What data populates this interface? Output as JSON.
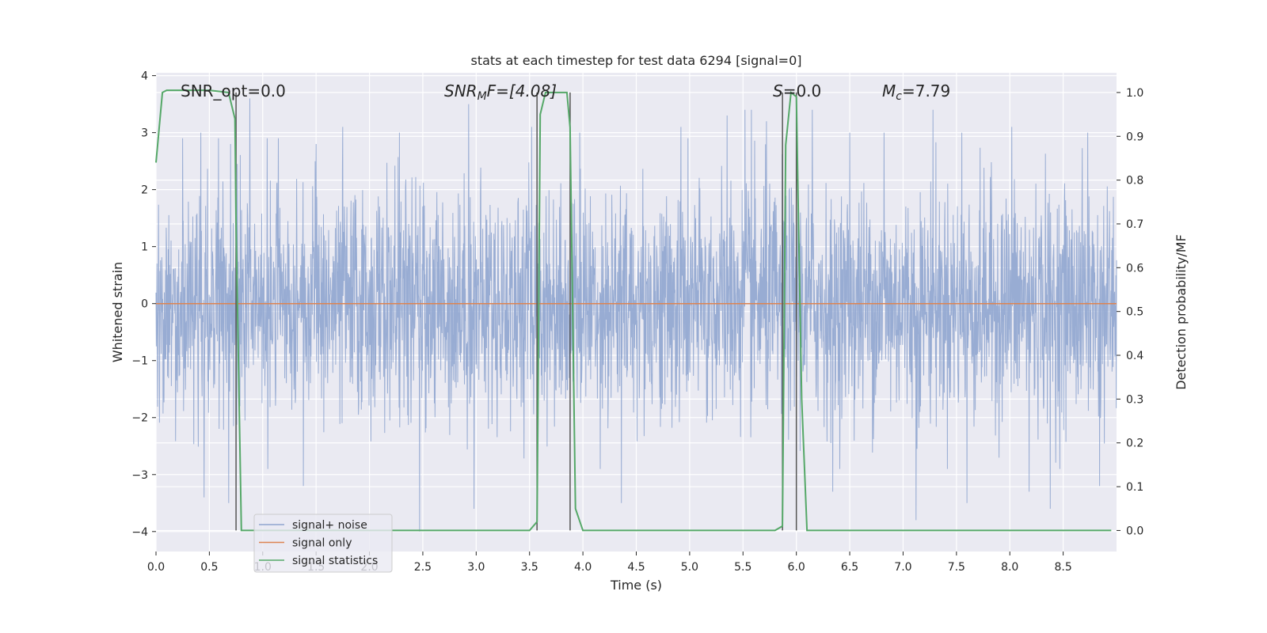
{
  "chart_data": {
    "type": "line",
    "title": "stats at each timestep for test data 6294 [signal=0]",
    "xlabel": "Time (s)",
    "ylabel": "Whitened strain",
    "y2label": "Detection probability/MF",
    "xlim": [
      0.0,
      9.0
    ],
    "ylim": [
      -4.35,
      4.05
    ],
    "y2lim": [
      -0.048,
      1.045
    ],
    "x_ticks": [
      "0.0",
      "0.5",
      "1.0",
      "1.5",
      "2.0",
      "2.5",
      "3.0",
      "3.5",
      "4.0",
      "4.5",
      "5.0",
      "5.5",
      "6.0",
      "6.5",
      "7.0",
      "7.5",
      "8.0",
      "8.5"
    ],
    "y_ticks": [
      "4",
      "3",
      "2",
      "1",
      "0",
      "−1",
      "−2",
      "−3",
      "−4"
    ],
    "y2_ticks": [
      "1.0",
      "0.9",
      "0.8",
      "0.7",
      "0.6",
      "0.5",
      "0.4",
      "0.3",
      "0.2",
      "0.1",
      "0.0"
    ],
    "grid": true,
    "legend_position": "lower-left",
    "annotations": {
      "snr_opt": "SNR_opt=0.0",
      "snr_mf_label": "SNR",
      "snr_mf_sub": "M",
      "snr_mf_rest": "F=[4.08]",
      "s_label": "S",
      "s_rest": "=0.0",
      "mc_label": "M",
      "mc_sub": "c",
      "mc_rest": "=7.79"
    },
    "series": [
      {
        "name": "signal+ noise",
        "color": "#8fa5cf",
        "description_values": "whitened noise, amplitude roughly within ±4",
        "spikes": [
          [
            0.25,
            2.9
          ],
          [
            0.42,
            3.0
          ],
          [
            0.45,
            -3.4
          ],
          [
            0.68,
            -3.5
          ],
          [
            0.7,
            2.8
          ],
          [
            0.88,
            3.6
          ],
          [
            1.04,
            2.9
          ],
          [
            1.38,
            -3.2
          ],
          [
            1.5,
            2.8
          ],
          [
            1.75,
            3.1
          ],
          [
            2.28,
            3.0
          ],
          [
            2.47,
            -4.0
          ],
          [
            2.93,
            3.5
          ],
          [
            2.98,
            -3.6
          ],
          [
            3.52,
            3.1
          ],
          [
            3.97,
            3.0
          ],
          [
            4.36,
            -3.5
          ],
          [
            4.92,
            3.1
          ],
          [
            5.35,
            3.3
          ],
          [
            5.52,
            3.4
          ],
          [
            5.58,
            3.4
          ],
          [
            5.72,
            3.2
          ],
          [
            6.15,
            3.4
          ],
          [
            6.34,
            -3.3
          ],
          [
            6.5,
            3.0
          ],
          [
            6.82,
            3.0
          ],
          [
            7.12,
            -3.8
          ],
          [
            7.28,
            3.4
          ],
          [
            7.55,
            3.0
          ],
          [
            7.6,
            -3.5
          ],
          [
            8.02,
            3.1
          ],
          [
            8.18,
            -3.3
          ],
          [
            8.38,
            -3.6
          ],
          [
            8.73,
            3.0
          ],
          [
            8.84,
            -3.2
          ]
        ]
      },
      {
        "name": "signal only",
        "color": "#dd8452",
        "x": [
          0.0,
          9.0
        ],
        "y": [
          0.0,
          0.0
        ]
      },
      {
        "name": "signal statistics",
        "color": "#55a868",
        "x": [
          0.0,
          0.06,
          0.1,
          0.2,
          0.5,
          0.68,
          0.74,
          0.75,
          0.8,
          1.5,
          2.5,
          3.5,
          3.57,
          3.6,
          3.65,
          3.75,
          3.85,
          3.88,
          3.93,
          4.0,
          4.5,
          5.5,
          5.8,
          5.87,
          5.9,
          5.95,
          6.0,
          6.02,
          6.05,
          6.1,
          6.5,
          7.5,
          8.5,
          8.95
        ],
        "y": [
          0.84,
          1.0,
          1.005,
          1.005,
          1.005,
          1.0,
          0.94,
          0.7,
          0.0,
          0.0,
          0.0,
          0.0,
          0.02,
          0.95,
          1.0,
          1.0,
          1.0,
          0.92,
          0.05,
          0.0,
          0.0,
          0.0,
          0.0,
          0.01,
          0.88,
          1.0,
          0.99,
          0.7,
          0.3,
          0.0,
          0.0,
          0.0,
          0.0,
          0.0
        ]
      }
    ],
    "vertical_lines_x": [
      0.75,
      3.57,
      3.88,
      5.87,
      6.0
    ]
  }
}
